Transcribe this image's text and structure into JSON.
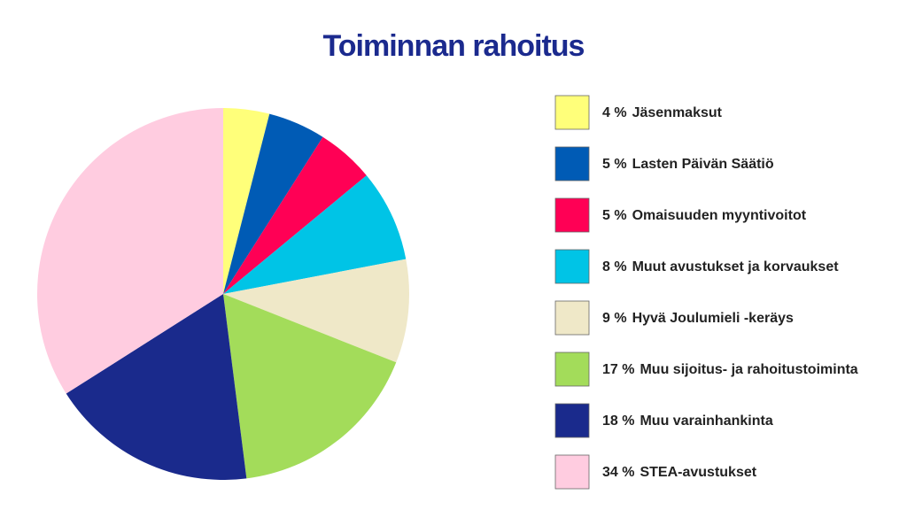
{
  "chart_data": {
    "type": "pie",
    "title": "Toiminnan rahoitus",
    "categories": [
      "Jäsenmaksut",
      "Lasten Päivän Säätiö",
      "Omaisuuden myyntivoitot",
      "Muut avustukset ja korvaukset",
      "Hyvä Joulumieli -keräys",
      "Muu sijoitus- ja rahoitustoiminta",
      "Muu varainhankinta",
      "STEA-avustukset"
    ],
    "values": [
      4,
      5,
      5,
      8,
      9,
      17,
      18,
      34
    ],
    "value_labels": [
      "4 %",
      "5 %",
      "5 %",
      "8 %",
      "9 %",
      "17 %",
      "18 %",
      "34 %"
    ],
    "colors": [
      "#ffff7a",
      "#005bb5",
      "#ff0055",
      "#00c4e6",
      "#efe8c8",
      "#a3dc5a",
      "#1a2a8c",
      "#ffcce0"
    ]
  }
}
